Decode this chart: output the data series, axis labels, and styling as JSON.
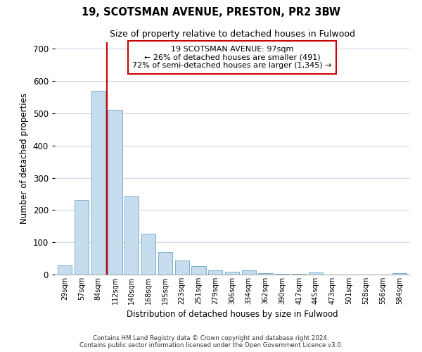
{
  "title": "19, SCOTSMAN AVENUE, PRESTON, PR2 3BW",
  "subtitle": "Size of property relative to detached houses in Fulwood",
  "xlabel": "Distribution of detached houses by size in Fulwood",
  "ylabel": "Number of detached properties",
  "bar_labels": [
    "29sqm",
    "57sqm",
    "84sqm",
    "112sqm",
    "140sqm",
    "168sqm",
    "195sqm",
    "223sqm",
    "251sqm",
    "279sqm",
    "306sqm",
    "334sqm",
    "362sqm",
    "390sqm",
    "417sqm",
    "445sqm",
    "473sqm",
    "501sqm",
    "528sqm",
    "556sqm",
    "584sqm"
  ],
  "bar_values": [
    28,
    232,
    570,
    510,
    242,
    127,
    70,
    43,
    27,
    13,
    9,
    13,
    5,
    2,
    2,
    6,
    1,
    0,
    0,
    0,
    5
  ],
  "bar_color": "#c5ddef",
  "bar_edge_color": "#7aafc8",
  "marker_color": "#cc0000",
  "ylim": [
    0,
    720
  ],
  "yticks": [
    0,
    100,
    200,
    300,
    400,
    500,
    600,
    700
  ],
  "annotation_title": "19 SCOTSMAN AVENUE: 97sqm",
  "annotation_line1": "← 26% of detached houses are smaller (491)",
  "annotation_line2": "72% of semi-detached houses are larger (1,345) →",
  "annotation_box_color": "#ffffff",
  "annotation_box_edge": "#cc0000",
  "footer_line1": "Contains HM Land Registry data © Crown copyright and database right 2024.",
  "footer_line2": "Contains public sector information licensed under the Open Government Licence v3.0.",
  "background_color": "#ffffff",
  "grid_color": "#ccd9e6"
}
